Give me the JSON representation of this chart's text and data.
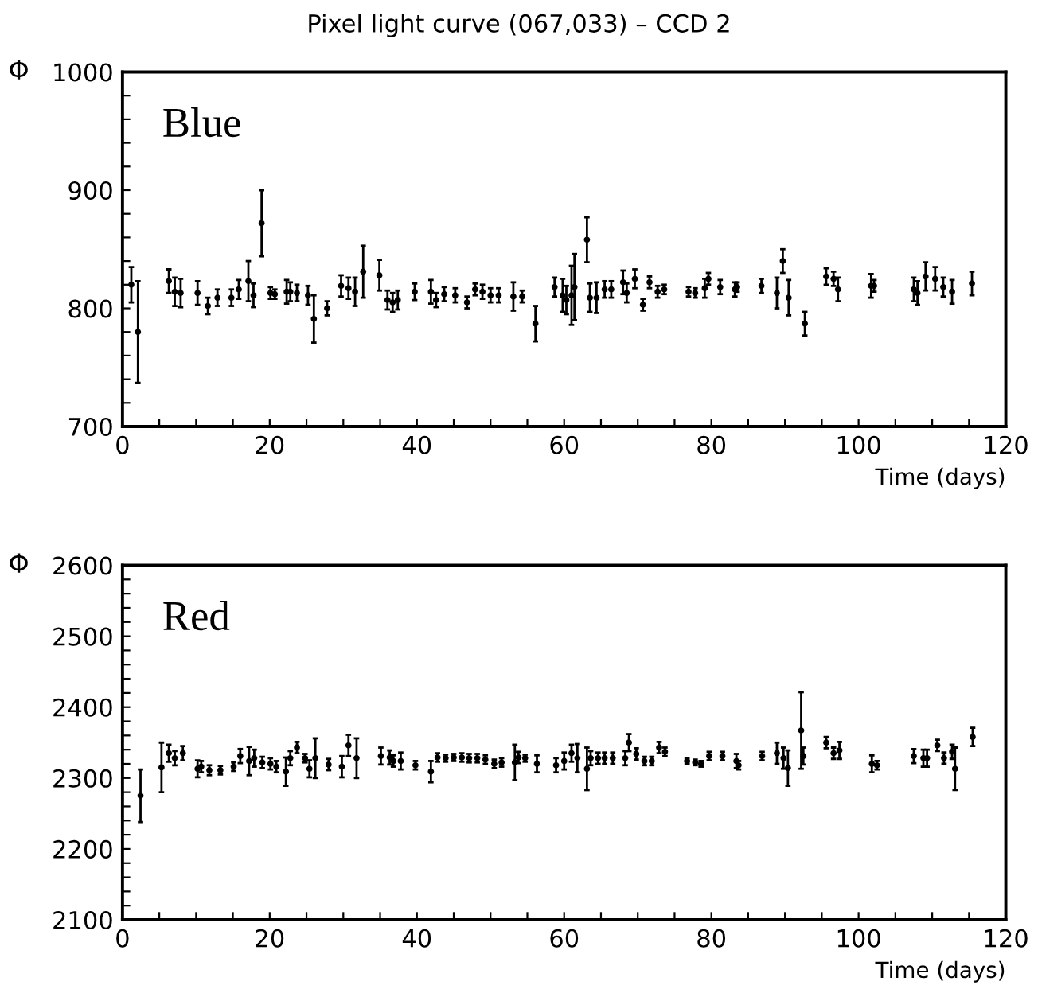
{
  "chart_data": [
    {
      "type": "scatter",
      "title": "Pixel light curve (067,033) – CCD 2",
      "annotations": [
        "Blue"
      ],
      "xlabel": "Time (days)",
      "ylabel": "Φ",
      "marker": "circle",
      "grid": false,
      "legend": false,
      "xlim": [
        0,
        120
      ],
      "ylim": [
        700,
        1000
      ],
      "xticks": [
        0,
        {
          "value": 5,
          "label": null
        },
        {
          "value": 10,
          "label": null
        },
        {
          "value": 15,
          "label": null
        },
        20,
        {
          "value": 25,
          "label": null
        },
        {
          "value": 30,
          "label": null
        },
        {
          "value": 35,
          "label": null
        },
        40,
        {
          "value": 45,
          "label": null
        },
        {
          "value": 50,
          "label": null
        },
        {
          "value": 55,
          "label": null
        },
        60,
        {
          "value": 65,
          "label": null
        },
        {
          "value": 70,
          "label": null
        },
        {
          "value": 75,
          "label": null
        },
        80,
        {
          "value": 85,
          "label": null
        },
        {
          "value": 90,
          "label": null
        },
        {
          "value": 95,
          "label": null
        },
        100,
        {
          "value": 105,
          "label": null
        },
        {
          "value": 110,
          "label": null
        },
        {
          "value": 115,
          "label": null
        },
        120
      ],
      "yticks": [
        700,
        {
          "value": 720,
          "label": null
        },
        {
          "value": 740,
          "label": null
        },
        {
          "value": 760,
          "label": null
        },
        {
          "value": 780,
          "label": null
        },
        800,
        {
          "value": 820,
          "label": null
        },
        {
          "value": 840,
          "label": null
        },
        {
          "value": 860,
          "label": null
        },
        {
          "value": 880,
          "label": null
        },
        900,
        {
          "value": 920,
          "label": null
        },
        {
          "value": 940,
          "label": null
        },
        {
          "value": 960,
          "label": null
        },
        {
          "value": 980,
          "label": null
        },
        1000
      ],
      "series": [
        {
          "color": "#000000",
          "x": [
            1.2,
            2.1,
            6.3,
            7.1,
            7.9,
            10.2,
            11.6,
            12.9,
            14.8,
            15.8,
            17.1,
            17.8,
            18.9,
            20.1,
            20.7,
            22.3,
            22.8,
            23.7,
            25.2,
            26.0,
            27.8,
            29.7,
            30.7,
            31.6,
            32.7,
            34.9,
            36.0,
            36.7,
            37.4,
            39.7,
            41.9,
            42.6,
            43.7,
            45.2,
            46.8,
            47.9,
            48.9,
            50.0,
            51.1,
            53.1,
            54.3,
            56.1,
            58.7,
            59.8,
            60.3,
            61.0,
            61.4,
            63.1,
            63.5,
            64.4,
            65.5,
            66.4,
            68.0,
            68.5,
            69.6,
            70.7,
            71.6,
            72.7,
            73.6,
            76.9,
            77.8,
            79.1,
            79.6,
            81.2,
            83.2,
            83.5,
            86.8,
            88.9,
            89.7,
            90.5,
            92.7,
            95.6,
            96.6,
            97.2,
            101.7,
            102.1,
            107.5,
            108.0,
            109.1,
            110.4,
            111.5,
            112.7,
            115.4
          ],
          "values": [
            820,
            780,
            823,
            814,
            813,
            813,
            802,
            809,
            809,
            816,
            823,
            811,
            872,
            813,
            812,
            814,
            814,
            813,
            811,
            791,
            800,
            819,
            817,
            814,
            831,
            828,
            807,
            805,
            807,
            814,
            814,
            807,
            812,
            811,
            805,
            816,
            814,
            811,
            811,
            810,
            810,
            787,
            818,
            811,
            807,
            811,
            818,
            858,
            809,
            809,
            816,
            816,
            822,
            813,
            825,
            803,
            822,
            814,
            816,
            814,
            813,
            817,
            825,
            818,
            816,
            818,
            819,
            813,
            840,
            809,
            787,
            827,
            825,
            816,
            819,
            819,
            816,
            813,
            827,
            825,
            818,
            814,
            821
          ],
          "errors": [
            15,
            43,
            10,
            12,
            12,
            10,
            7,
            7,
            7,
            8,
            17,
            10,
            28,
            5,
            4,
            10,
            8,
            7,
            8,
            20,
            6,
            9,
            9,
            12,
            22,
            13,
            8,
            8,
            8,
            7,
            10,
            6,
            6,
            6,
            5,
            5,
            6,
            6,
            6,
            12,
            5,
            15,
            8,
            14,
            12,
            25,
            28,
            19,
            12,
            13,
            7,
            7,
            10,
            8,
            8,
            5,
            5,
            5,
            4,
            4,
            4,
            8,
            5,
            6,
            6,
            4,
            6,
            13,
            10,
            15,
            10,
            7,
            6,
            10,
            10,
            5,
            10,
            10,
            12,
            10,
            8,
            10,
            10
          ]
        }
      ]
    },
    {
      "type": "scatter",
      "annotations": [
        "Red"
      ],
      "xlabel": "Time (days)",
      "ylabel": "Φ",
      "marker": "circle",
      "grid": false,
      "legend": false,
      "xlim": [
        0,
        120
      ],
      "ylim": [
        2100,
        2600
      ],
      "xticks": [
        0,
        {
          "value": 5,
          "label": null
        },
        {
          "value": 10,
          "label": null
        },
        {
          "value": 15,
          "label": null
        },
        20,
        {
          "value": 25,
          "label": null
        },
        {
          "value": 30,
          "label": null
        },
        {
          "value": 35,
          "label": null
        },
        40,
        {
          "value": 45,
          "label": null
        },
        {
          "value": 50,
          "label": null
        },
        {
          "value": 55,
          "label": null
        },
        60,
        {
          "value": 65,
          "label": null
        },
        {
          "value": 70,
          "label": null
        },
        {
          "value": 75,
          "label": null
        },
        80,
        {
          "value": 85,
          "label": null
        },
        {
          "value": 90,
          "label": null
        },
        {
          "value": 95,
          "label": null
        },
        100,
        {
          "value": 105,
          "label": null
        },
        {
          "value": 110,
          "label": null
        },
        {
          "value": 115,
          "label": null
        },
        120
      ],
      "yticks": [
        2100,
        {
          "value": 2120,
          "label": null
        },
        {
          "value": 2140,
          "label": null
        },
        {
          "value": 2160,
          "label": null
        },
        {
          "value": 2180,
          "label": null
        },
        2200,
        {
          "value": 2220,
          "label": null
        },
        {
          "value": 2240,
          "label": null
        },
        {
          "value": 2260,
          "label": null
        },
        {
          "value": 2280,
          "label": null
        },
        2300,
        {
          "value": 2320,
          "label": null
        },
        {
          "value": 2340,
          "label": null
        },
        {
          "value": 2360,
          "label": null
        },
        {
          "value": 2380,
          "label": null
        },
        2400,
        {
          "value": 2420,
          "label": null
        },
        {
          "value": 2440,
          "label": null
        },
        {
          "value": 2460,
          "label": null
        },
        {
          "value": 2480,
          "label": null
        },
        2500,
        {
          "value": 2520,
          "label": null
        },
        {
          "value": 2540,
          "label": null
        },
        {
          "value": 2560,
          "label": null
        },
        {
          "value": 2580,
          "label": null
        },
        2600
      ],
      "series": [
        {
          "color": "#000000",
          "x": [
            2.45,
            5.3,
            6.3,
            7.1,
            8.2,
            10.2,
            10.7,
            11.8,
            13.3,
            15.1,
            16.0,
            17.2,
            17.9,
            19.0,
            20.1,
            20.9,
            22.2,
            22.8,
            23.7,
            24.8,
            25.4,
            26.2,
            28.0,
            29.8,
            30.7,
            31.8,
            35.1,
            36.3,
            36.8,
            37.8,
            39.8,
            41.9,
            42.8,
            43.9,
            45.0,
            46.1,
            47.1,
            48.2,
            49.3,
            50.5,
            51.5,
            53.3,
            53.8,
            54.7,
            56.3,
            58.9,
            60.0,
            61.0,
            61.8,
            63.1,
            63.6,
            64.6,
            65.5,
            66.6,
            68.3,
            68.8,
            69.8,
            70.9,
            71.9,
            72.9,
            73.7,
            76.7,
            77.8,
            78.6,
            79.7,
            81.5,
            83.4,
            83.7,
            86.9,
            88.9,
            89.8,
            90.4,
            92.2,
            92.5,
            95.6,
            96.6,
            97.4,
            101.8,
            102.5,
            107.5,
            108.8,
            109.3,
            110.7,
            111.6,
            112.7,
            113.1,
            115.5
          ],
          "values": [
            2275,
            2315,
            2335,
            2328,
            2335,
            2313,
            2316,
            2311,
            2311,
            2316,
            2331,
            2324,
            2328,
            2322,
            2320,
            2316,
            2309,
            2328,
            2343,
            2328,
            2313,
            2328,
            2319,
            2316,
            2346,
            2328,
            2331,
            2329,
            2324,
            2324,
            2318,
            2309,
            2329,
            2328,
            2329,
            2329,
            2328,
            2328,
            2326,
            2320,
            2322,
            2322,
            2329,
            2328,
            2320,
            2318,
            2324,
            2335,
            2328,
            2313,
            2328,
            2328,
            2328,
            2328,
            2328,
            2350,
            2334,
            2324,
            2324,
            2343,
            2337,
            2324,
            2322,
            2320,
            2331,
            2331,
            2324,
            2318,
            2331,
            2335,
            2328,
            2314,
            2367,
            2331,
            2350,
            2335,
            2339,
            2320,
            2318,
            2331,
            2328,
            2328,
            2346,
            2328,
            2337,
            2313,
            2358
          ],
          "errors": [
            37,
            35,
            12,
            10,
            10,
            12,
            8,
            7,
            6,
            6,
            10,
            20,
            12,
            8,
            8,
            8,
            20,
            10,
            8,
            6,
            12,
            28,
            8,
            15,
            15,
            28,
            12,
            10,
            8,
            12,
            6,
            15,
            6,
            5,
            5,
            6,
            6,
            6,
            6,
            6,
            6,
            25,
            8,
            5,
            12,
            10,
            12,
            12,
            20,
            30,
            10,
            8,
            8,
            8,
            10,
            12,
            8,
            6,
            6,
            8,
            6,
            4,
            4,
            4,
            6,
            6,
            10,
            6,
            6,
            15,
            15,
            25,
            54,
            12,
            8,
            8,
            12,
            12,
            6,
            10,
            12,
            12,
            8,
            8,
            10,
            30,
            13
          ]
        }
      ]
    }
  ]
}
